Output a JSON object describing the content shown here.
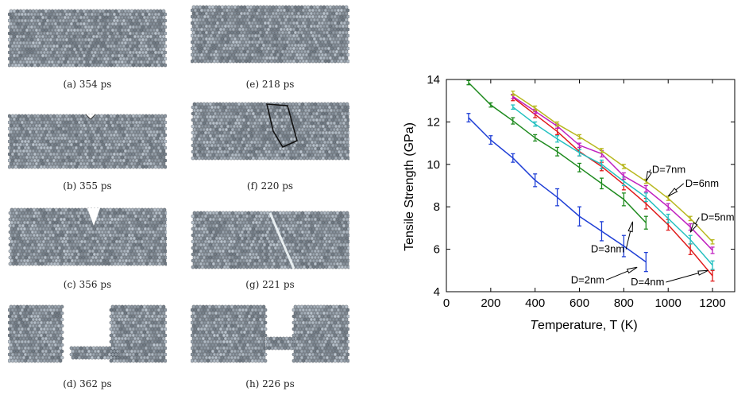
{
  "figure": {
    "panels": [
      {
        "caption": "(a) 354 ps",
        "state": "intact"
      },
      {
        "caption": "(b) 355 ps",
        "state": "notch"
      },
      {
        "caption": "(c) 356 ps",
        "state": "crack"
      },
      {
        "caption": "(d) 362 ps",
        "state": "broken"
      },
      {
        "caption": "(e) 218 ps",
        "state": "intact"
      },
      {
        "caption": "(f) 220 ps",
        "state": "outlined"
      },
      {
        "caption": "(g) 221 ps",
        "state": "slip"
      },
      {
        "caption": "(h) 226 ps",
        "state": "neck"
      }
    ]
  },
  "chart_data": {
    "type": "line",
    "xlabel": "Temperature, T (K)",
    "ylabel": "Tensile Strength (GPa)",
    "xlim": [
      0,
      1300
    ],
    "ylim": [
      4,
      14
    ],
    "xticks": [
      0,
      200,
      400,
      600,
      800,
      1000,
      1200
    ],
    "yticks": [
      4,
      6,
      8,
      10,
      12,
      14
    ],
    "grid": false,
    "series": [
      {
        "name": "D=2nm",
        "color": "#1f3fd6",
        "x": [
          100,
          200,
          300,
          400,
          500,
          600,
          700,
          800,
          900
        ],
        "values": [
          12.2,
          11.15,
          10.3,
          9.25,
          8.45,
          7.55,
          6.85,
          6.15,
          5.4
        ],
        "err": [
          0.2,
          0.2,
          0.2,
          0.3,
          0.4,
          0.45,
          0.45,
          0.5,
          0.45
        ]
      },
      {
        "name": "D=3nm",
        "color": "#1e8a1e",
        "x": [
          100,
          200,
          300,
          400,
          500,
          600,
          700,
          800,
          900
        ],
        "values": [
          13.85,
          12.8,
          12.05,
          11.25,
          10.6,
          9.85,
          9.1,
          8.35,
          7.25
        ],
        "err": [
          0.1,
          0.1,
          0.15,
          0.15,
          0.2,
          0.2,
          0.25,
          0.3,
          0.3
        ]
      },
      {
        "name": "D=4nm",
        "color": "#e01a1a",
        "x": [
          300,
          400,
          500,
          600,
          700,
          800,
          900,
          1000,
          1100,
          1200
        ],
        "values": [
          13.15,
          12.35,
          11.55,
          10.6,
          9.9,
          9.05,
          8.15,
          7.15,
          6.0,
          4.75
        ],
        "err": [
          0.15,
          0.15,
          0.15,
          0.2,
          0.2,
          0.25,
          0.25,
          0.25,
          0.25,
          0.25
        ]
      },
      {
        "name": "D=5nm",
        "color": "#22c0c0",
        "x": [
          300,
          400,
          500,
          600,
          700,
          800,
          900,
          1000,
          1100,
          1200
        ],
        "values": [
          12.7,
          11.9,
          11.2,
          10.55,
          10.0,
          9.2,
          8.45,
          7.45,
          6.45,
          5.25
        ],
        "err": [
          0.1,
          0.1,
          0.15,
          0.15,
          0.2,
          0.2,
          0.2,
          0.2,
          0.2,
          0.2
        ]
      },
      {
        "name": "D=6nm",
        "color": "#c020c0",
        "x": [
          300,
          400,
          500,
          600,
          700,
          800,
          900,
          1000,
          1100,
          1200
        ],
        "values": [
          13.2,
          12.5,
          11.8,
          10.9,
          10.5,
          9.45,
          8.85,
          8.0,
          7.05,
          5.95
        ],
        "err": [
          0.1,
          0.1,
          0.1,
          0.1,
          0.15,
          0.15,
          0.15,
          0.15,
          0.15,
          0.15
        ]
      },
      {
        "name": "D=7nm",
        "color": "#b8b820",
        "x": [
          300,
          400,
          500,
          600,
          700,
          800,
          900,
          1000,
          1100,
          1200
        ],
        "values": [
          13.35,
          12.65,
          11.9,
          11.3,
          10.65,
          9.9,
          9.2,
          8.4,
          7.45,
          6.35
        ],
        "err": [
          0.1,
          0.1,
          0.1,
          0.1,
          0.1,
          0.1,
          0.1,
          0.1,
          0.1,
          0.1
        ]
      }
    ],
    "annotations": [
      {
        "text": "D=7nm",
        "target": [
          900,
          9.2
        ],
        "label_at": [
          920,
          9.75
        ]
      },
      {
        "text": "D=6nm",
        "target": [
          1000,
          8.5
        ],
        "label_at": [
          1070,
          9.1
        ]
      },
      {
        "text": "D=5nm",
        "target": [
          1100,
          6.8
        ],
        "label_at": [
          1140,
          7.5
        ]
      },
      {
        "text": "D=3nm",
        "target": [
          840,
          7.3
        ],
        "label_at": [
          810,
          6.0
        ]
      },
      {
        "text": "D=4nm",
        "target": [
          1180,
          5.0
        ],
        "label_at": [
          990,
          4.45
        ]
      },
      {
        "text": "D=2nm",
        "target": [
          860,
          5.15
        ],
        "label_at": [
          720,
          4.55
        ]
      }
    ]
  }
}
